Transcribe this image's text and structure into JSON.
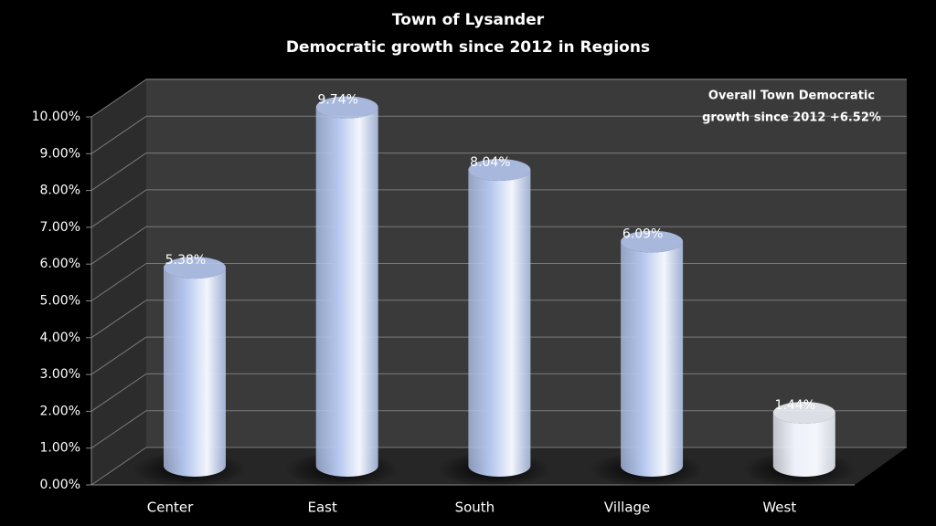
{
  "chart_data": {
    "type": "bar3d",
    "title": "Town of Lysander",
    "subtitle": "Democratic growth since 2012 in Regions",
    "categories": [
      "Center",
      "East",
      "South",
      "Village",
      "West"
    ],
    "values": [
      5.38,
      9.74,
      8.04,
      6.09,
      1.44
    ],
    "value_labels": [
      "5.38%",
      "9.74%",
      "8.04%",
      "6.09%",
      "1.44%"
    ],
    "colors": [
      "#b4c6ee",
      "#b4c6ee",
      "#b4c6ee",
      "#b4c6ee",
      "#eef1fa"
    ],
    "ylim": [
      0,
      10
    ],
    "yticks": [
      {
        "value": 0,
        "label": "0.00%"
      },
      {
        "value": 1,
        "label": "1.00%"
      },
      {
        "value": 2,
        "label": "2.00%"
      },
      {
        "value": 3,
        "label": "3.00%"
      },
      {
        "value": 4,
        "label": "4.00%"
      },
      {
        "value": 5,
        "label": "5.00%"
      },
      {
        "value": 6,
        "label": "6.00%"
      },
      {
        "value": 7,
        "label": "7.00%"
      },
      {
        "value": 8,
        "label": "8.00%"
      },
      {
        "value": 9,
        "label": "9.00%"
      },
      {
        "value": 10,
        "label": "10.00%"
      }
    ],
    "grid": true,
    "annotation": [
      "Overall Town Democratic",
      "growth since 2012 +6.52%"
    ]
  }
}
